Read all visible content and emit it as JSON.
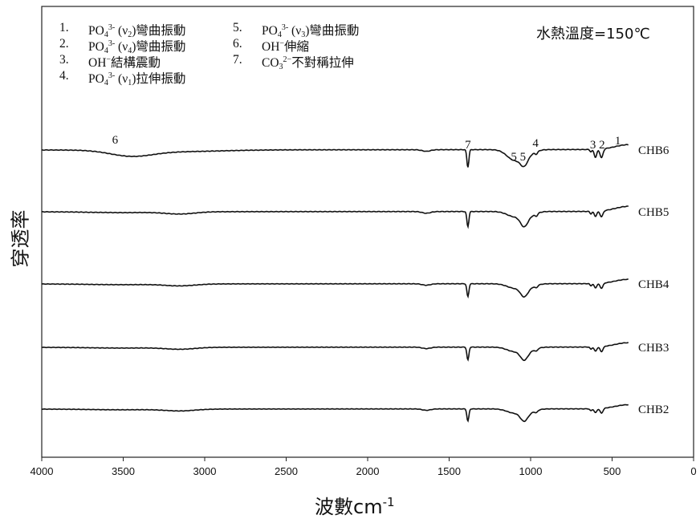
{
  "legend": [
    {
      "num": "1.",
      "prefix": "PO",
      "sub": "4",
      "sup": "3-",
      "mode": "(ν",
      "mode_sub": "2",
      "suffix": ")彎曲振動"
    },
    {
      "num": "2.",
      "prefix": "PO",
      "sub": "4",
      "sup": "3-",
      "mode": "(ν",
      "mode_sub": "4",
      "suffix": ")彎曲振動"
    },
    {
      "num": "3.",
      "prefix": "OH",
      "sub": "",
      "sup": "−",
      "mode": "",
      "mode_sub": "",
      "suffix": "結構震動"
    },
    {
      "num": "4.",
      "prefix": "PO",
      "sub": "4",
      "sup": "3-",
      "mode": "(ν",
      "mode_sub": "1",
      "suffix": ")拉伸振動"
    },
    {
      "num": "5.",
      "prefix": "PO",
      "sub": "4",
      "sup": "3-",
      "mode": "(ν",
      "mode_sub": "3",
      "suffix": ")彎曲振動"
    },
    {
      "num": "6.",
      "prefix": "OH",
      "sub": "",
      "sup": "−",
      "mode": "",
      "mode_sub": "",
      "suffix": "伸縮"
    },
    {
      "num": "7.",
      "prefix": "CO",
      "sub": "3",
      "sup": "2−",
      "mode": "",
      "mode_sub": "",
      "suffix": "不對稱拉伸"
    }
  ],
  "annotation": "水熱溫度=150℃",
  "chart_data": {
    "type": "line",
    "xlabel": "波數",
    "xlabel_unit": "cm",
    "xlabel_exp": "-1",
    "ylabel": "穿透率",
    "xlim": [
      4000,
      0
    ],
    "xticks": [
      "4000",
      "3500",
      "3000",
      "2500",
      "2000",
      "1500",
      "1000",
      "500",
      "0"
    ],
    "series": [
      {
        "name": "CHB6",
        "baseline": 0
      },
      {
        "name": "CHB5",
        "baseline": 1
      },
      {
        "name": "CHB4",
        "baseline": 2
      },
      {
        "name": "CHB3",
        "baseline": 3
      },
      {
        "name": "CHB2",
        "baseline": 4
      }
    ],
    "peak_labels": [
      {
        "text": "6",
        "x": 3550
      },
      {
        "text": "7",
        "x": 1385
      },
      {
        "text": "5 5",
        "x": 1075
      },
      {
        "text": "4",
        "x": 970
      },
      {
        "text": "3 2",
        "x": 590
      },
      {
        "text": "1",
        "x": 465
      }
    ]
  }
}
